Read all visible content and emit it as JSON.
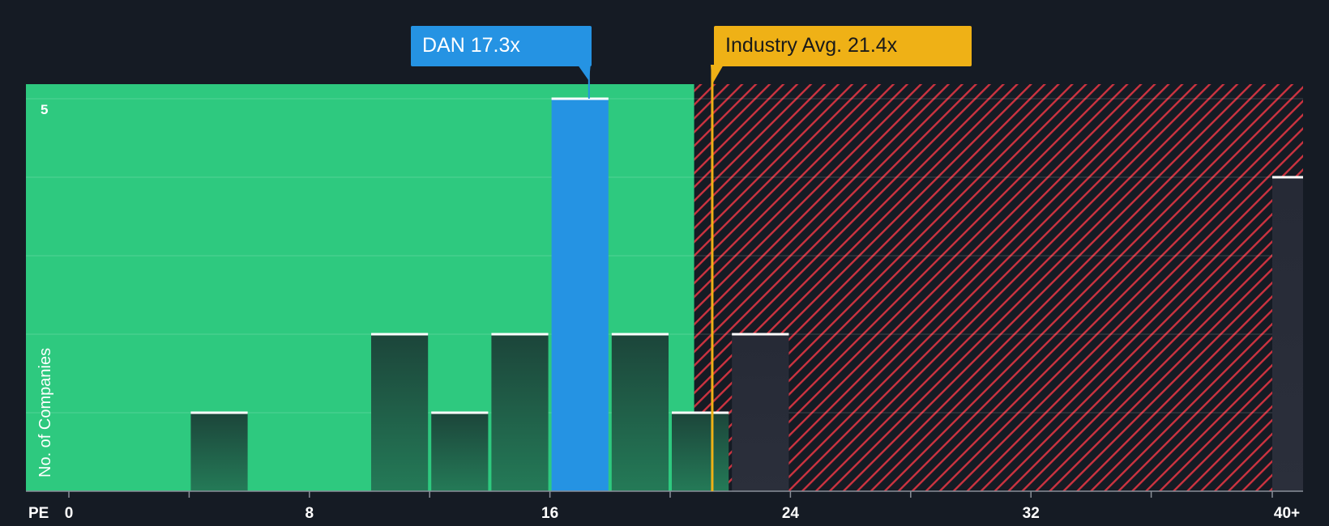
{
  "chart_data": {
    "type": "bar",
    "xlabel": "PE",
    "ylabel": "No. of Companies",
    "x_ticks": [
      "0",
      "8",
      "16",
      "24",
      "32",
      "40+"
    ],
    "y_ticks": [
      "5"
    ],
    "ylim": [
      0,
      5
    ],
    "bins": [
      {
        "start": 0,
        "end": 2,
        "value": 0
      },
      {
        "start": 2,
        "end": 4,
        "value": 0
      },
      {
        "start": 4,
        "end": 6,
        "value": 1
      },
      {
        "start": 6,
        "end": 8,
        "value": 0
      },
      {
        "start": 8,
        "end": 10,
        "value": 0
      },
      {
        "start": 10,
        "end": 12,
        "value": 2
      },
      {
        "start": 12,
        "end": 14,
        "value": 1
      },
      {
        "start": 14,
        "end": 16,
        "value": 2
      },
      {
        "start": 16,
        "end": 18,
        "value": 5,
        "highlight": true
      },
      {
        "start": 18,
        "end": 20,
        "value": 2
      },
      {
        "start": 20,
        "end": 22,
        "value": 1
      },
      {
        "start": 22,
        "end": 24,
        "value": 2
      },
      {
        "start": 40,
        "end": 41,
        "value": 4,
        "label": "40+"
      }
    ],
    "fair_range_max": 20.8,
    "annotations": [
      {
        "name": "dan",
        "label": "DAN 17.3x",
        "value": 17.3
      },
      {
        "name": "industry",
        "label": "Industry Avg. 21.4x",
        "value": 21.4
      }
    ],
    "colors": {
      "background": "#151b24",
      "green_zone": "#2ec97f",
      "red_hatch": "#cc3340",
      "bar_dark": "#1e4a3c",
      "bar_highlight": "#2593e3",
      "bar_cap": "#ffffff",
      "industry_line": "#efb116"
    }
  }
}
